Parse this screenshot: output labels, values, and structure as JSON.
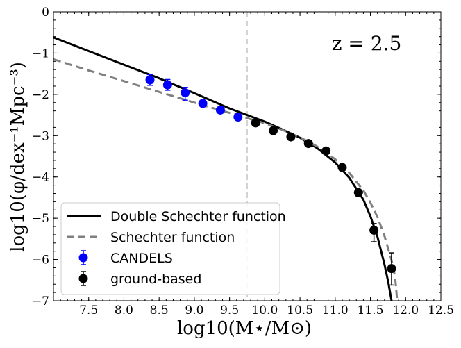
{
  "chart_data": {
    "type": "scatter",
    "title": "",
    "annotation": "z = 2.5",
    "xlabel": "log10(M⋆/M⊙)",
    "ylabel": "log10(φ/dex⁻¹Mpc⁻³)",
    "xlim": [
      7.0,
      12.5
    ],
    "ylim": [
      -7,
      0
    ],
    "x_ticks": [
      7.5,
      8.0,
      8.5,
      9.0,
      9.5,
      10.0,
      10.5,
      11.0,
      11.5,
      12.0,
      12.5
    ],
    "x_tick_labels": [
      "7.5",
      "8.0",
      "8.5",
      "9.0",
      "9.5",
      "10.0",
      "10.5",
      "11.0",
      "11.5",
      "12.0",
      "12.5"
    ],
    "y_ticks": [
      0,
      -1,
      -2,
      -3,
      -4,
      -5,
      -6,
      -7
    ],
    "y_tick_labels": [
      "0",
      "−1",
      "−2",
      "−3",
      "−4",
      "−5",
      "−6",
      "−7"
    ],
    "vertical_line_x": 9.75,
    "legend_position": "bottom-left",
    "series": [
      {
        "name": "Double Schechter function",
        "kind": "line",
        "style": "solid",
        "color": "#000000",
        "x": [
          7.0,
          7.5,
          8.0,
          8.5,
          9.0,
          9.5,
          10.0,
          10.25,
          10.5,
          10.75,
          11.0,
          11.2,
          11.4,
          11.5,
          11.6,
          11.7,
          11.75,
          11.8
        ],
        "y": [
          -0.62,
          -0.95,
          -1.28,
          -1.61,
          -1.97,
          -2.34,
          -2.66,
          -2.85,
          -3.05,
          -3.31,
          -3.65,
          -4.02,
          -4.55,
          -4.95,
          -5.45,
          -6.12,
          -6.52,
          -7.0
        ]
      },
      {
        "name": "Schechter function",
        "kind": "line",
        "style": "dashed",
        "color": "#808080",
        "x": [
          7.0,
          7.5,
          8.0,
          8.5,
          9.0,
          9.5,
          10.0,
          10.25,
          10.5,
          10.75,
          11.0,
          11.2,
          11.4,
          11.5,
          11.6,
          11.7,
          11.8,
          11.85,
          11.88
        ],
        "y": [
          -1.15,
          -1.42,
          -1.68,
          -1.94,
          -2.2,
          -2.45,
          -2.7,
          -2.86,
          -3.04,
          -3.27,
          -3.57,
          -3.9,
          -4.33,
          -4.62,
          -4.97,
          -5.43,
          -6.02,
          -6.42,
          -7.0
        ]
      },
      {
        "name": "CANDELS",
        "kind": "points",
        "color": "#0000ff",
        "x": [
          8.37,
          8.62,
          8.87,
          9.12,
          9.37,
          9.62
        ],
        "y": [
          -1.65,
          -1.77,
          -1.96,
          -2.22,
          -2.38,
          -2.55
        ],
        "yerr_up": [
          0.13,
          0.13,
          0.13,
          0.04,
          0.03,
          0.03
        ],
        "yerr_down": [
          0.13,
          0.13,
          0.18,
          0.05,
          0.03,
          0.03
        ]
      },
      {
        "name": "ground-based",
        "kind": "points",
        "color": "#000000",
        "x": [
          9.87,
          10.12,
          10.37,
          10.62,
          10.87,
          11.1,
          11.33,
          11.55,
          11.8
        ],
        "y": [
          -2.69,
          -2.88,
          -3.03,
          -3.19,
          -3.37,
          -3.77,
          -4.38,
          -5.29,
          -6.22
        ],
        "yerr_up": [
          0.03,
          0.03,
          0.03,
          0.04,
          0.04,
          0.05,
          0.08,
          0.16,
          0.38
        ],
        "yerr_down": [
          0.03,
          0.03,
          0.03,
          0.04,
          0.04,
          0.06,
          0.1,
          0.28,
          0.4
        ]
      }
    ]
  }
}
